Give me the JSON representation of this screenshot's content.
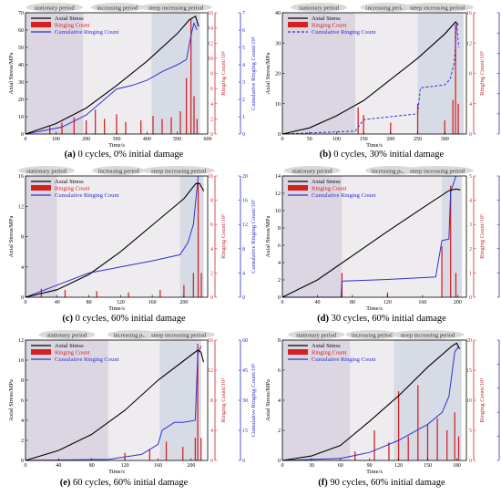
{
  "colors": {
    "axial": "#000000",
    "ringing": "#d42020",
    "cumulative": "#3030d0",
    "axis_left": "#000000",
    "axis_mid": "#c8282c",
    "axis_right": "#2a2ad4",
    "stationary_bg": "#dcd6e2",
    "increasing_bg": "#efecef",
    "steep_bg": "#d7dbe6",
    "pill_bg": "#d9d9d9"
  },
  "legend": {
    "axial": "Axial Stress",
    "ringing": "Ringing Count",
    "cumulative": "Cumulative Ringing Count"
  },
  "periods": {
    "stationary": "stationary period",
    "increasing": "increasing period",
    "steep": "steep increasing period"
  },
  "chart_data": [
    {
      "type": "line",
      "panel_label": "(a)",
      "caption_rest": " 0 cycles, 0% initial damage",
      "xlabel": "Time/s",
      "ylabel_left": "Axial Stress/MPa",
      "ylabel_mid": "Ringing Count/10³",
      "ylabel_right": "Cumulative Ringing Count/10⁶",
      "xlim": [
        0,
        600
      ],
      "xticks": [
        "0",
        "100",
        "200",
        "300",
        "400",
        "500",
        "600"
      ],
      "ylim_left": [
        0,
        70
      ],
      "yticks_left": [
        "0",
        "10",
        "20",
        "30",
        "40",
        "50",
        "60",
        "70"
      ],
      "ylim_mid": [
        0,
        16
      ],
      "yticks_mid": [
        "0",
        "2",
        "4",
        "6",
        "8",
        "10",
        "12",
        "14",
        "16"
      ],
      "ylim_right": [
        0,
        7
      ],
      "yticks_right": [
        "0",
        "1",
        "2",
        "3",
        "4",
        "5",
        "6",
        "7"
      ],
      "period_bounds": [
        190,
        415,
        575
      ],
      "stress": [
        [
          0,
          0
        ],
        [
          100,
          6
        ],
        [
          200,
          15
        ],
        [
          300,
          28
        ],
        [
          400,
          42
        ],
        [
          500,
          58
        ],
        [
          540,
          66
        ],
        [
          560,
          68
        ],
        [
          570,
          62
        ]
      ],
      "cumulative": [
        [
          0,
          0
        ],
        [
          120,
          0.4
        ],
        [
          200,
          1.1
        ],
        [
          260,
          2.0
        ],
        [
          300,
          2.6
        ],
        [
          350,
          2.8
        ],
        [
          400,
          3.1
        ],
        [
          450,
          3.6
        ],
        [
          500,
          4.0
        ],
        [
          530,
          4.3
        ],
        [
          545,
          5.7
        ],
        [
          555,
          6.4
        ],
        [
          565,
          6.0
        ]
      ],
      "ringing": [
        [
          80,
          1.0
        ],
        [
          120,
          1.5
        ],
        [
          160,
          2.2
        ],
        [
          200,
          1.8
        ],
        [
          230,
          3.2
        ],
        [
          260,
          2.0
        ],
        [
          300,
          2.6
        ],
        [
          330,
          1.6
        ],
        [
          380,
          1.8
        ],
        [
          420,
          2.4
        ],
        [
          450,
          2.0
        ],
        [
          480,
          2.2
        ],
        [
          510,
          3.0
        ],
        [
          530,
          7.4
        ],
        [
          545,
          15.2
        ],
        [
          555,
          5.0
        ],
        [
          565,
          2.0
        ]
      ]
    },
    {
      "type": "line",
      "panel_label": "(b)",
      "caption_rest": " 0 cycles, 30% initial damage",
      "xlabel": "Time/s",
      "ylabel_left": "Axial Stress/MPa",
      "ylabel_mid": "Ringing Count/10³",
      "ylabel_right": "Cumulative Ringing Count/10³",
      "xlim": [
        0,
        340
      ],
      "xticks": [
        "0",
        "50",
        "100",
        "150",
        "200",
        "250",
        "300"
      ],
      "ylim_left": [
        0,
        40
      ],
      "yticks_left": [
        "0",
        "10",
        "20",
        "30",
        "40"
      ],
      "ylim_mid": [
        0,
        16
      ],
      "yticks_mid": [
        "0",
        "4",
        "8",
        "12",
        "16"
      ],
      "ylim_right": [
        0,
        42
      ],
      "yticks_right": [
        "0",
        "7",
        "14",
        "21",
        "28",
        "35",
        "42"
      ],
      "period_bounds": [
        135,
        250,
        335
      ],
      "stress": [
        [
          0,
          0
        ],
        [
          50,
          2
        ],
        [
          100,
          6
        ],
        [
          150,
          11
        ],
        [
          200,
          18
        ],
        [
          250,
          25
        ],
        [
          300,
          33
        ],
        [
          320,
          37
        ],
        [
          325,
          36
        ]
      ],
      "cumulative": [
        [
          0,
          0
        ],
        [
          135,
          1
        ],
        [
          150,
          5
        ],
        [
          200,
          6
        ],
        [
          250,
          7
        ],
        [
          255,
          16
        ],
        [
          300,
          17
        ],
        [
          310,
          19
        ],
        [
          318,
          25
        ],
        [
          322,
          38
        ],
        [
          326,
          30
        ]
      ],
      "ringing": [
        [
          140,
          3.5
        ],
        [
          150,
          2.5
        ],
        [
          200,
          1.5
        ],
        [
          250,
          4.0
        ],
        [
          300,
          1.8
        ],
        [
          315,
          4.5
        ],
        [
          320,
          14.5
        ],
        [
          325,
          4.0
        ]
      ]
    },
    {
      "type": "line",
      "panel_label": "(c)",
      "caption_rest": " 0 cycles, 60% initial damage",
      "xlabel": "Time/s",
      "ylabel_left": "Axial Stress/MPa",
      "ylabel_mid": "Ringing Count/10³",
      "ylabel_right": "Cumulative Ringing Count/10³",
      "xlim": [
        0,
        230
      ],
      "xticks": [
        "0",
        "40",
        "80",
        "120",
        "160",
        "200"
      ],
      "ylim_left": [
        0,
        16
      ],
      "yticks_left": [
        "0",
        "4",
        "8",
        "12",
        "16"
      ],
      "ylim_mid": [
        0,
        10
      ],
      "yticks_mid": [
        "0",
        "2",
        "4",
        "6",
        "8",
        "10"
      ],
      "ylim_right": [
        0,
        20
      ],
      "yticks_right": [
        "0",
        "4",
        "8",
        "12",
        "16",
        "20"
      ],
      "period_bounds": [
        40,
        195,
        225
      ],
      "stress": [
        [
          0,
          0
        ],
        [
          40,
          1
        ],
        [
          80,
          3
        ],
        [
          120,
          6
        ],
        [
          160,
          9.5
        ],
        [
          200,
          13
        ],
        [
          215,
          15
        ],
        [
          220,
          15
        ],
        [
          225,
          14
        ]
      ],
      "cumulative": [
        [
          0,
          0
        ],
        [
          40,
          2
        ],
        [
          80,
          4
        ],
        [
          120,
          5
        ],
        [
          160,
          6
        ],
        [
          195,
          7
        ],
        [
          205,
          9
        ],
        [
          212,
          12
        ],
        [
          218,
          20
        ]
      ],
      "ringing": [
        [
          20,
          0.7
        ],
        [
          50,
          0.6
        ],
        [
          90,
          0.5
        ],
        [
          130,
          0.4
        ],
        [
          170,
          0.6
        ],
        [
          200,
          1.0
        ],
        [
          212,
          2.0
        ],
        [
          218,
          9.5
        ],
        [
          222,
          2.0
        ]
      ]
    },
    {
      "type": "line",
      "panel_label": "(d)",
      "caption_rest": " 30 cycles, 60% initial damage",
      "xlabel": "Time/s",
      "ylabel_left": "Axial Stress/MPa",
      "ylabel_mid": "Ringing Count/10³",
      "ylabel_right": "Cumulative Ringing Count/10³",
      "xlim": [
        0,
        210
      ],
      "xticks": [
        "0",
        "40",
        "80",
        "120",
        "160",
        "200"
      ],
      "ylim_left": [
        0,
        14
      ],
      "yticks_left": [
        "0",
        "2",
        "4",
        "6",
        "8",
        "10",
        "12",
        "14"
      ],
      "ylim_mid": [
        0,
        5
      ],
      "yticks_mid": [
        "0",
        "1",
        "2",
        "3",
        "4",
        "5"
      ],
      "ylim_right": [
        0,
        15
      ],
      "yticks_right": [
        "0",
        "3",
        "6",
        "9",
        "12",
        "15"
      ],
      "period_bounds": [
        68,
        182,
        205
      ],
      "stress": [
        [
          0,
          0
        ],
        [
          40,
          2
        ],
        [
          80,
          4.8
        ],
        [
          120,
          7.6
        ],
        [
          160,
          10.3
        ],
        [
          190,
          12.3
        ],
        [
          198,
          12.5
        ],
        [
          203,
          12.4
        ]
      ],
      "cumulative": [
        [
          0,
          0
        ],
        [
          67,
          0
        ],
        [
          68,
          2
        ],
        [
          120,
          2.2
        ],
        [
          175,
          2.5
        ],
        [
          182,
          7
        ],
        [
          190,
          7.2
        ],
        [
          192,
          13
        ],
        [
          198,
          15
        ]
      ],
      "ringing": [
        [
          68,
          1.0
        ],
        [
          120,
          0.2
        ],
        [
          182,
          2.1
        ],
        [
          192,
          4.6
        ],
        [
          198,
          1.0
        ]
      ]
    },
    {
      "type": "line",
      "panel_label": "(e)",
      "caption_rest": " 60 cycles, 60% initial damage",
      "xlabel": "Time/s",
      "ylabel_left": "Axial Stress/MPa",
      "ylabel_mid": "Ringing Count/10³",
      "ylabel_right": "Cumulative Ringing Count/10³",
      "xlim": [
        0,
        220
      ],
      "xticks": [
        "0",
        "40",
        "80",
        "120",
        "160",
        "200"
      ],
      "ylim_left": [
        0,
        12
      ],
      "yticks_left": [
        "0",
        "2",
        "4",
        "6",
        "8",
        "10",
        "12"
      ],
      "ylim_mid": [
        0,
        16
      ],
      "yticks_mid": [
        "0",
        "4",
        "8",
        "12",
        "16"
      ],
      "ylim_right": [
        0,
        60
      ],
      "yticks_right": [
        "0",
        "15",
        "30",
        "45",
        "60"
      ],
      "period_bounds": [
        100,
        162,
        212
      ],
      "stress": [
        [
          0,
          0
        ],
        [
          40,
          1
        ],
        [
          80,
          2.6
        ],
        [
          120,
          5
        ],
        [
          160,
          8
        ],
        [
          200,
          10.5
        ],
        [
          208,
          11
        ],
        [
          212,
          10.8
        ],
        [
          215,
          9.8
        ]
      ],
      "cumulative": [
        [
          0,
          0
        ],
        [
          100,
          0.5
        ],
        [
          140,
          3
        ],
        [
          160,
          8
        ],
        [
          165,
          15
        ],
        [
          180,
          19
        ],
        [
          190,
          19
        ],
        [
          205,
          20
        ],
        [
          208,
          53
        ],
        [
          212,
          57
        ]
      ],
      "ringing": [
        [
          120,
          1.0
        ],
        [
          150,
          1.5
        ],
        [
          170,
          2.5
        ],
        [
          190,
          1.8
        ],
        [
          205,
          3.0
        ],
        [
          208,
          15.5
        ],
        [
          212,
          3.0
        ]
      ]
    },
    {
      "type": "line",
      "panel_label": "(f)",
      "caption_rest": " 90 cycles, 60% initial damage",
      "xlabel": "Time/s",
      "ylabel_left": "Axial Stress/MPa",
      "ylabel_mid": "Ringing Count/10³",
      "ylabel_right": "Cumulative Ringing Count/10³",
      "xlim": [
        0,
        190
      ],
      "xticks": [
        "0",
        "30",
        "60",
        "90",
        "120",
        "150",
        "180"
      ],
      "ylim_left": [
        0,
        8
      ],
      "yticks_left": [
        "0",
        "2",
        "4",
        "6",
        "8"
      ],
      "ylim_mid": [
        0,
        20
      ],
      "yticks_mid": [
        "0",
        "5",
        "10",
        "15",
        "20"
      ],
      "ylim_right": [
        0,
        30
      ],
      "yticks_right": [
        "0",
        "6",
        "12",
        "18",
        "24",
        "30"
      ],
      "period_bounds": [
        70,
        115,
        185
      ],
      "stress": [
        [
          0,
          0
        ],
        [
          30,
          0.3
        ],
        [
          60,
          1
        ],
        [
          90,
          2.6
        ],
        [
          120,
          4.3
        ],
        [
          150,
          6.2
        ],
        [
          175,
          7.6
        ],
        [
          180,
          7.8
        ],
        [
          183,
          7.4
        ]
      ],
      "cumulative": [
        [
          0,
          0
        ],
        [
          60,
          0.5
        ],
        [
          90,
          2
        ],
        [
          120,
          5
        ],
        [
          135,
          7
        ],
        [
          150,
          9
        ],
        [
          165,
          12
        ],
        [
          172,
          16
        ],
        [
          178,
          27
        ],
        [
          182,
          28.5
        ]
      ],
      "ringing": [
        [
          75,
          1.5
        ],
        [
          95,
          5.0
        ],
        [
          110,
          3.0
        ],
        [
          120,
          11.5
        ],
        [
          130,
          4.0
        ],
        [
          140,
          12.5
        ],
        [
          150,
          6.0
        ],
        [
          160,
          7.0
        ],
        [
          170,
          5.0
        ],
        [
          178,
          8.0
        ],
        [
          182,
          4.0
        ]
      ]
    }
  ]
}
